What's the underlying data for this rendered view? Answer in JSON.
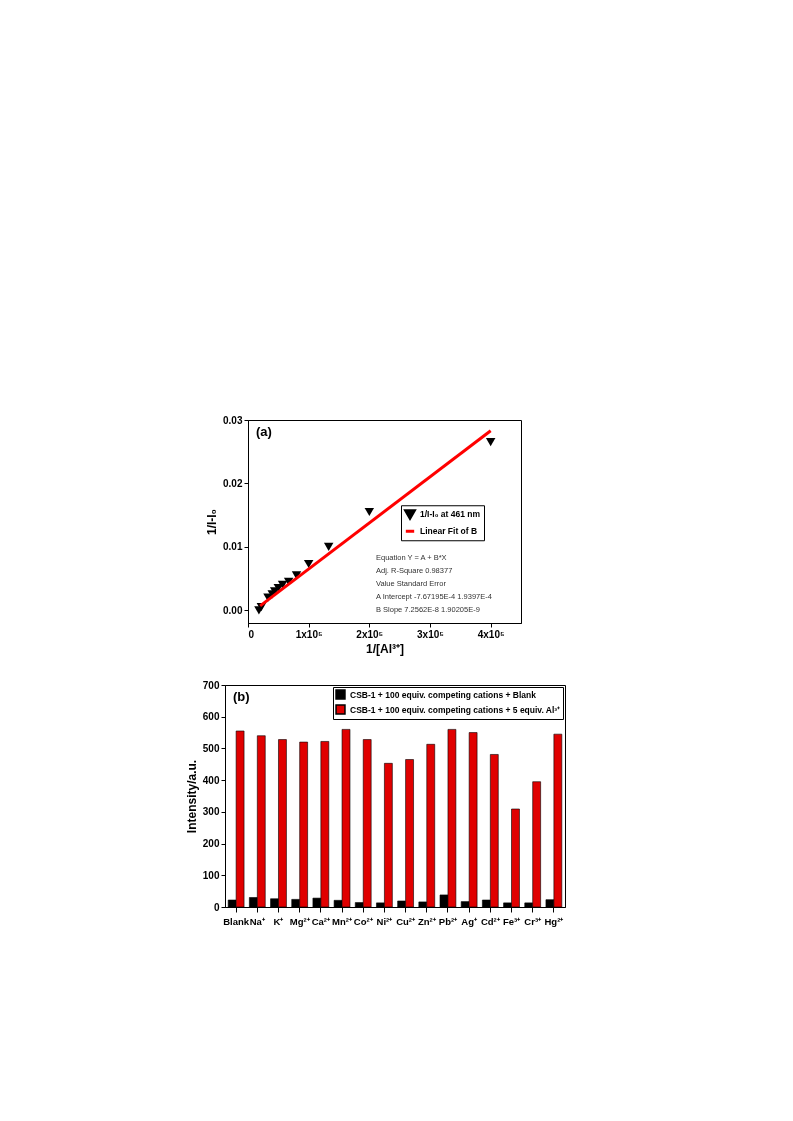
{
  "chart_data": [
    {
      "type": "scatter",
      "title": "(a)",
      "xlabel": "1/[Al³⁺]",
      "ylabel": "1/I-I₀",
      "series": [
        {
          "name": "1/I-I₀ at 461 nm",
          "type": "scatter",
          "color": "#000000",
          "marker": "triangle",
          "x": [
            18000,
            22000,
            33000,
            40000,
            44000,
            50000,
            57000,
            67000,
            80000,
            100000,
            133000,
            200000,
            400000
          ],
          "values": [
            0.0,
            0.0005,
            0.002,
            0.0025,
            0.003,
            0.0035,
            0.004,
            0.0045,
            0.0055,
            0.0073,
            0.01,
            0.0155,
            0.0265
          ]
        },
        {
          "name": "Linear Fit of B",
          "type": "line",
          "color": "#ff0000",
          "x": [
            20000,
            400000
          ],
          "values": [
            0.0007,
            0.0283
          ]
        }
      ],
      "xlim": [
        0,
        450000
      ],
      "xticks": [
        0,
        {
          "value": 100000,
          "label": "1x10⁵"
        },
        {
          "value": 200000,
          "label": "2x10⁵"
        },
        {
          "value": 300000,
          "label": "3x10⁵"
        },
        {
          "value": 400000,
          "label": "4x10⁵"
        }
      ],
      "ylim": [
        -0.002,
        0.03
      ],
      "yticks": [
        {
          "value": 0,
          "label": "0.00"
        },
        {
          "value": 0.01,
          "label": "0.01"
        },
        {
          "value": 0.02,
          "label": "0.02"
        },
        {
          "value": 0.03,
          "label": "0.03"
        }
      ],
      "legend": "right",
      "annotations": [
        "Equation   Y = A + B*X",
        "Adj. R-Square   0.98377",
        "Value   Standard Error",
        "A   Intercept   -7.67195E-4   1.9397E-4",
        "B   Slope   7.2562E-8   1.90205E-9"
      ]
    },
    {
      "type": "bar",
      "title": "(b)",
      "ylabel": "Intensity/a.u.",
      "categories": [
        "Blank",
        "Na⁺",
        "K⁺",
        "Mg²⁺",
        "Ca²⁺",
        "Mn²⁺",
        "Co²⁺",
        "Ni²⁺",
        "Cu²⁺",
        "Zn²⁺",
        "Pb²⁺",
        "Ag⁺",
        "Cd²⁺",
        "Fe³⁺",
        "Cr³⁺",
        "Hg²⁺"
      ],
      "series": [
        {
          "name": "CSB-1 + 100 equiv. competing cations + Blank",
          "color": "#000000",
          "values": [
            22,
            30,
            26,
            24,
            28,
            21,
            14,
            13,
            19,
            16,
            38,
            17,
            22,
            13,
            13,
            23
          ]
        },
        {
          "name": "CSB-1 + 100 equiv. competing cations + 5 equiv. Al³⁺",
          "color": "#e00000",
          "values": [
            555,
            540,
            528,
            520,
            522,
            560,
            528,
            453,
            465,
            513,
            560,
            550,
            481,
            309,
            395,
            545
          ]
        }
      ],
      "ylim": [
        0,
        700
      ],
      "yticks": [
        0,
        100,
        200,
        300,
        400,
        500,
        600,
        700
      ],
      "legend": "top right"
    }
  ]
}
